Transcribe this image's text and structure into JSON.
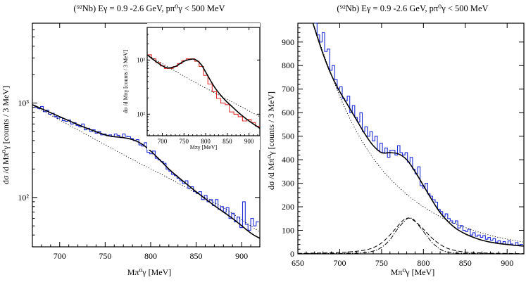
{
  "chart_data": [
    {
      "id": "left",
      "type": "line",
      "title": "(⁹²Nb) Eγ = 0.9 -2.6 GeV,  pπ⁰γ < 500 MeV",
      "xlabel": "Mπ⁰γ  [MeV]",
      "ylabel": "dσ /d Mπ⁰γ  [counts / 3 MeV]",
      "yscale": "log",
      "xlim": [
        670,
        920
      ],
      "ylim": [
        30,
        7000
      ],
      "xticks": [
        700,
        750,
        800,
        850,
        900
      ],
      "yticks": [
        {
          "v": 100,
          "label": "10²"
        },
        {
          "v": 1000,
          "label": "10³"
        }
      ],
      "histogram": {
        "x": [
          670,
          673,
          676,
          679,
          682,
          685,
          688,
          691,
          694,
          697,
          700,
          703,
          706,
          709,
          712,
          715,
          718,
          721,
          724,
          727,
          730,
          733,
          736,
          739,
          742,
          745,
          748,
          751,
          754,
          757,
          760,
          763,
          766,
          769,
          772,
          775,
          778,
          781,
          784,
          787,
          790,
          793,
          796,
          799,
          802,
          805,
          808,
          811,
          814,
          817,
          820,
          823,
          826,
          829,
          832,
          835,
          838,
          841,
          844,
          847,
          850,
          853,
          856,
          859,
          862,
          865,
          868,
          871,
          874,
          877,
          880,
          883,
          886,
          889,
          892,
          895,
          898,
          901,
          904,
          907,
          910,
          913,
          916
        ],
        "y": [
          940,
          900,
          870,
          920,
          810,
          840,
          760,
          780,
          720,
          690,
          700,
          650,
          640,
          660,
          600,
          620,
          580,
          560,
          600,
          520,
          540,
          500,
          520,
          480,
          500,
          460,
          470,
          450,
          460,
          440,
          470,
          455,
          430,
          470,
          445,
          440,
          420,
          400,
          410,
          360,
          350,
          380,
          300,
          290,
          310,
          260,
          250,
          240,
          230,
          200,
          190,
          175,
          170,
          160,
          150,
          140,
          150,
          125,
          130,
          115,
          110,
          115,
          95,
          105,
          90,
          95,
          82,
          95,
          75,
          80,
          70,
          78,
          60,
          68,
          55,
          62,
          48,
          90,
          52,
          45,
          60,
          50,
          55
        ]
      },
      "fit": {
        "x": [
          670,
          690,
          710,
          730,
          750,
          760,
          770,
          780,
          790,
          800,
          810,
          820,
          830,
          850,
          870,
          890,
          910,
          920
        ],
        "y": [
          960,
          790,
          650,
          540,
          460,
          440,
          430,
          410,
          370,
          310,
          250,
          200,
          165,
          115,
          82,
          60,
          42,
          37
        ]
      },
      "background": {
        "x": [
          670,
          700,
          730,
          760,
          790,
          820,
          850,
          880,
          910,
          920
        ],
        "y": [
          950,
          660,
          460,
          320,
          225,
          160,
          112,
          78,
          50,
          43
        ]
      }
    },
    {
      "id": "inset",
      "type": "line",
      "xlabel": "Mπγ  [MeV]",
      "ylabel": "dσ /d Mπγ  [counts / 3 MeV]",
      "yscale": "log",
      "xlim": [
        665,
        925
      ],
      "ylim": [
        40,
        4000
      ],
      "xticks": [
        700,
        750,
        800,
        850,
        900
      ],
      "yticks": [
        {
          "v": 100,
          "label": "10²"
        },
        {
          "v": 1000,
          "label": "10³"
        }
      ],
      "histogram": {
        "x": [
          665,
          675,
          685,
          695,
          705,
          715,
          725,
          735,
          745,
          755,
          765,
          775,
          785,
          795,
          805,
          815,
          825,
          835,
          845,
          855,
          865,
          875,
          885,
          895,
          905,
          915
        ],
        "y": [
          1250,
          1050,
          900,
          780,
          700,
          700,
          760,
          860,
          980,
          1050,
          1050,
          950,
          760,
          520,
          360,
          260,
          195,
          160,
          150,
          110,
          100,
          90,
          75,
          80,
          70,
          60
        ]
      },
      "fit": {
        "x": [
          665,
          690,
          710,
          730,
          750,
          770,
          780,
          790,
          800,
          820,
          840,
          860,
          880,
          900,
          925
        ],
        "y": [
          1250,
          880,
          720,
          760,
          950,
          1040,
          980,
          820,
          600,
          320,
          200,
          140,
          100,
          75,
          55
        ]
      },
      "background": {
        "x": [
          665,
          700,
          740,
          780,
          820,
          860,
          900,
          925
        ],
        "y": [
          1250,
          860,
          560,
          370,
          250,
          170,
          115,
          90
        ]
      }
    },
    {
      "id": "right",
      "type": "line",
      "title": "(⁹²Nb) Eγ = 0.9 -2.6 GeV,  pπ⁰γ < 500 MeV",
      "xlabel": "Mπ⁰γ  [MeV]",
      "ylabel": "dσ /d Mπ⁰γ  [counts / 3 MeV]",
      "yscale": "linear",
      "xlim": [
        650,
        920
      ],
      "ylim": [
        0,
        980
      ],
      "xticks": [
        650,
        700,
        750,
        800,
        850,
        900
      ],
      "yticks": [
        {
          "v": 0,
          "label": "0"
        },
        {
          "v": 100,
          "label": "100"
        },
        {
          "v": 200,
          "label": "200"
        },
        {
          "v": 300,
          "label": "300"
        },
        {
          "v": 400,
          "label": "400"
        },
        {
          "v": 500,
          "label": "500"
        },
        {
          "v": 600,
          "label": "600"
        },
        {
          "v": 700,
          "label": "700"
        },
        {
          "v": 800,
          "label": "800"
        },
        {
          "v": 900,
          "label": "900"
        }
      ],
      "histogram": {
        "x": [
          670,
          673,
          676,
          679,
          682,
          685,
          688,
          691,
          694,
          697,
          700,
          703,
          706,
          709,
          712,
          715,
          718,
          721,
          724,
          727,
          730,
          733,
          736,
          739,
          742,
          745,
          748,
          751,
          754,
          757,
          760,
          763,
          766,
          769,
          772,
          775,
          778,
          781,
          784,
          787,
          790,
          793,
          796,
          799,
          802,
          805,
          808,
          811,
          814,
          817,
          820,
          823,
          826,
          829,
          832,
          835,
          838,
          841,
          844,
          847,
          850,
          853,
          856,
          859,
          862,
          865,
          868,
          871,
          874,
          877,
          880,
          883,
          886,
          889,
          892,
          895,
          898,
          901,
          904,
          907,
          910,
          913,
          916
        ],
        "y": [
          980,
          930,
          900,
          940,
          860,
          870,
          780,
          800,
          740,
          700,
          710,
          660,
          650,
          670,
          600,
          630,
          580,
          560,
          600,
          520,
          540,
          500,
          520,
          480,
          500,
          440,
          470,
          430,
          450,
          410,
          440,
          440,
          420,
          460,
          430,
          420,
          430,
          390,
          410,
          360,
          340,
          370,
          290,
          280,
          300,
          255,
          245,
          230,
          220,
          190,
          180,
          160,
          170,
          150,
          140,
          130,
          140,
          110,
          120,
          100,
          95,
          105,
          80,
          90,
          75,
          80,
          70,
          78,
          62,
          70,
          58,
          65,
          50,
          56,
          44,
          52,
          40,
          55,
          42,
          36,
          48,
          38,
          40
        ]
      },
      "fit": {
        "x": [
          668,
          680,
          690,
          700,
          710,
          720,
          730,
          740,
          750,
          760,
          770,
          780,
          790,
          800,
          810,
          820,
          830,
          840,
          850,
          860,
          870,
          880,
          890,
          900,
          910,
          920
        ],
        "y": [
          980,
          850,
          760,
          690,
          630,
          570,
          510,
          460,
          430,
          430,
          425,
          400,
          350,
          290,
          230,
          175,
          135,
          105,
          85,
          70,
          58,
          50,
          44,
          40,
          36,
          33
        ]
      },
      "background": {
        "x": [
          668,
          690,
          710,
          730,
          750,
          770,
          790,
          810,
          830,
          850,
          870,
          890,
          910,
          920
        ],
        "y": [
          1000,
          760,
          590,
          460,
          360,
          285,
          225,
          178,
          140,
          112,
          88,
          70,
          56,
          50
        ]
      },
      "signal_dashed": {
        "x": [
          650,
          700,
          730,
          745,
          755,
          765,
          775,
          782,
          790,
          800,
          810,
          820,
          830,
          845,
          870,
          920
        ],
        "y": [
          2,
          6,
          16,
          35,
          62,
          100,
          140,
          152,
          138,
          105,
          68,
          40,
          22,
          10,
          4,
          1
        ]
      },
      "signal_dashdot": {
        "x": [
          650,
          720,
          740,
          750,
          760,
          770,
          780,
          785,
          790,
          800,
          810,
          820,
          830,
          850,
          920
        ],
        "y": [
          1,
          3,
          12,
          28,
          60,
          110,
          148,
          152,
          140,
          95,
          50,
          20,
          7,
          2,
          0
        ]
      }
    }
  ]
}
